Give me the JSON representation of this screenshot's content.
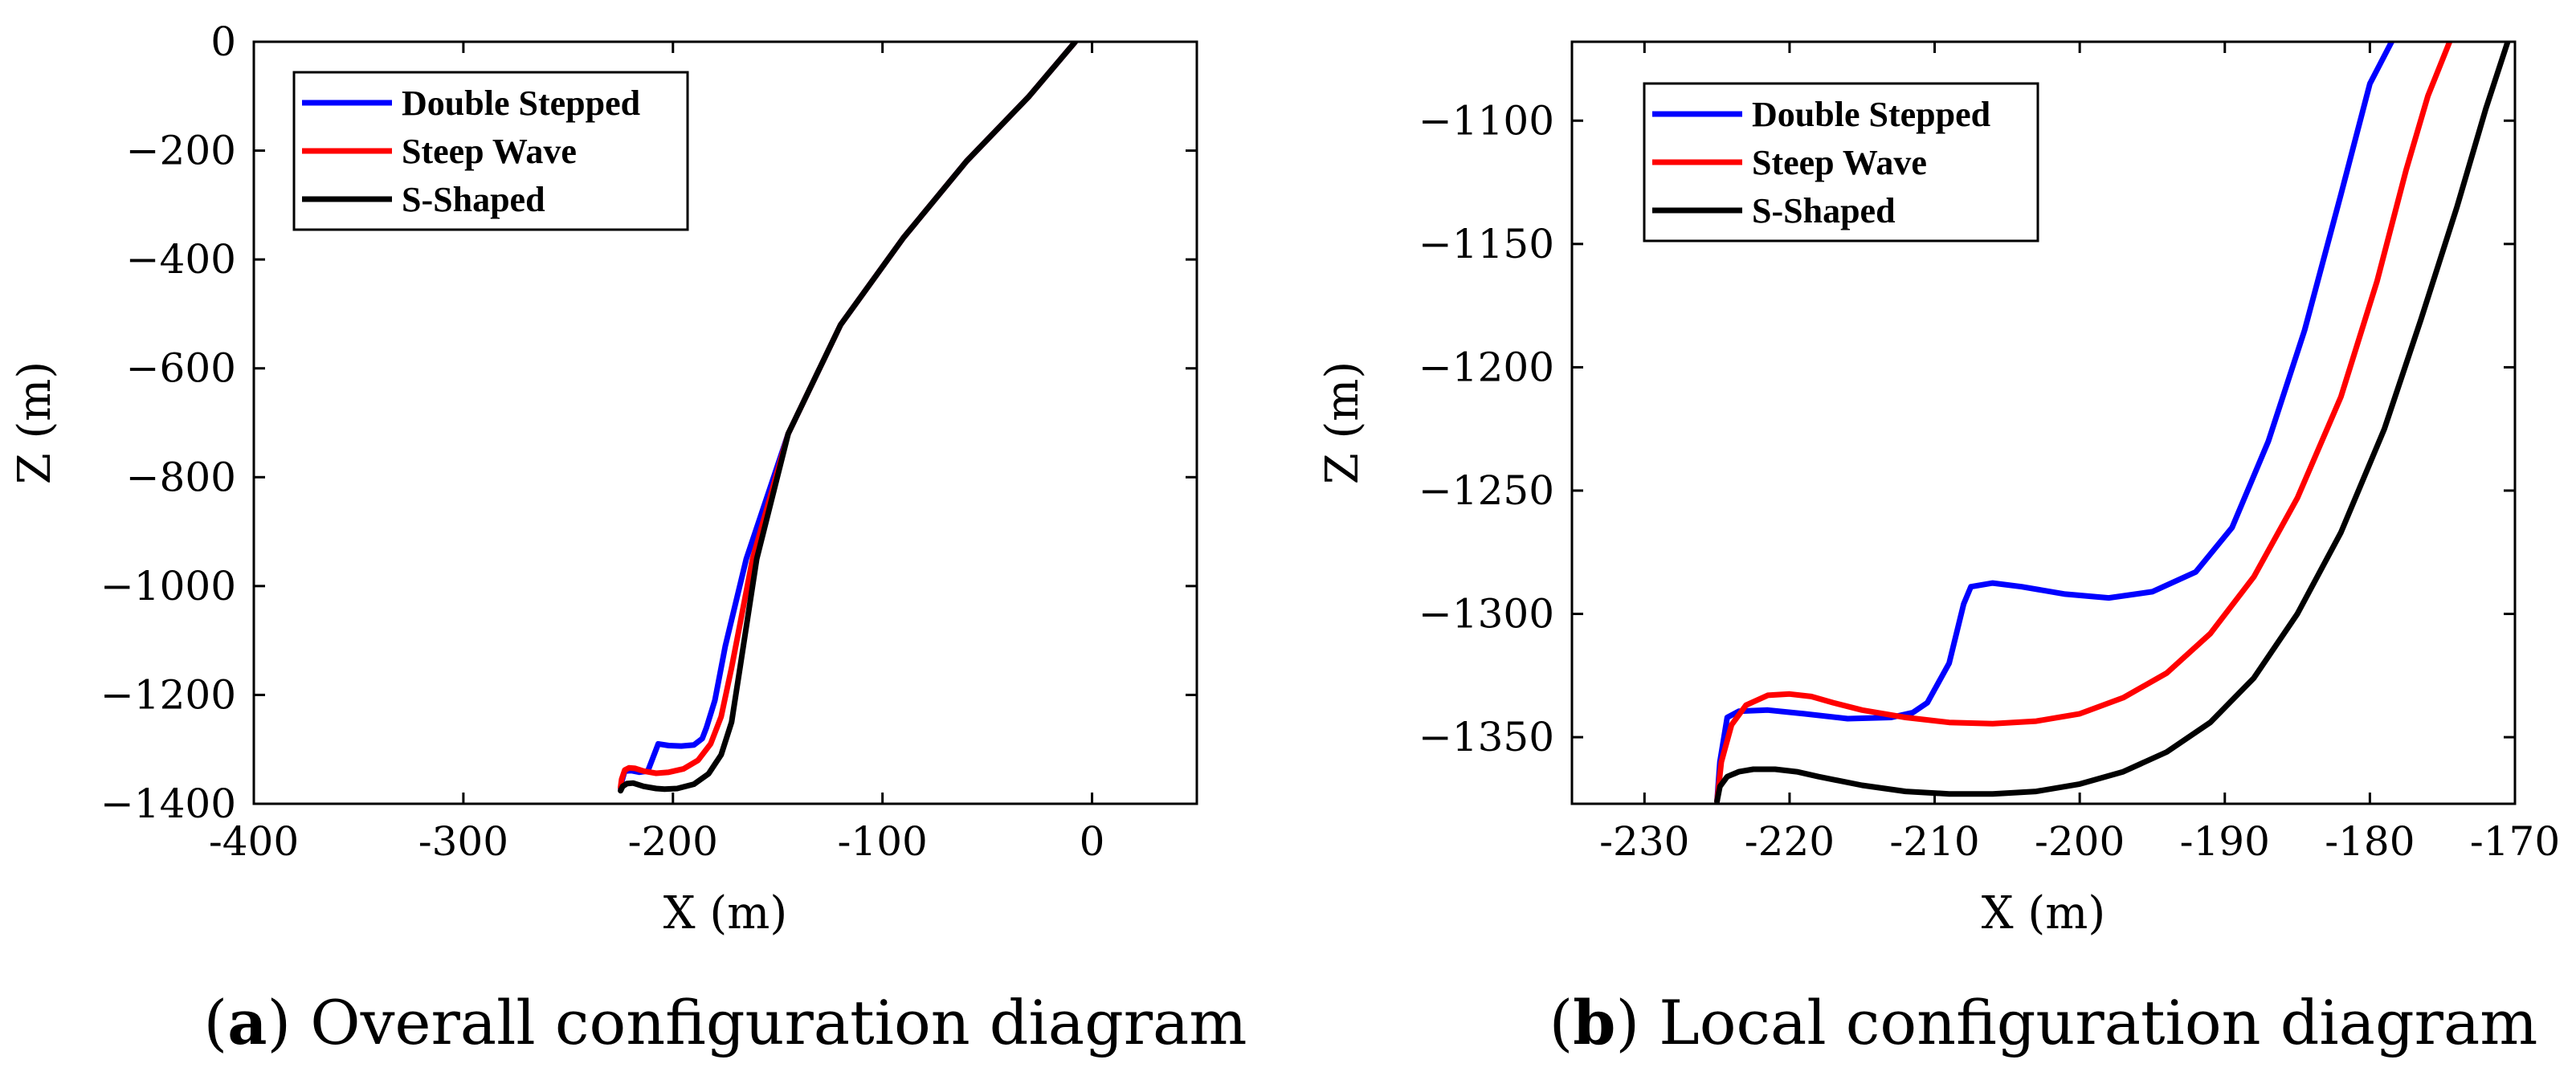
{
  "chart_data": [
    {
      "type": "line",
      "caption_letter": "a",
      "caption_text": "Overall configuration diagram",
      "xlabel": "X (m)",
      "ylabel": "Z (m)",
      "xlim": [
        -400,
        50
      ],
      "ylim": [
        -1400,
        0
      ],
      "xticks": [
        -400,
        -300,
        -200,
        -100,
        0
      ],
      "xtick_labels": [
        "-400",
        "-300",
        "-200",
        "-100",
        "0"
      ],
      "yticks": [
        0,
        -200,
        -400,
        -600,
        -800,
        -1000,
        -1200,
        -1400
      ],
      "ytick_labels": [
        "0",
        "−200",
        "−400",
        "−600",
        "−800",
        "−1000",
        "−1200",
        "−1400"
      ],
      "legend_position": "top-left",
      "series": [
        {
          "name": "Double Stepped",
          "color": "#0000ff",
          "x": [
            -8,
            -30,
            -60,
            -90,
            -120,
            -145,
            -165,
            -175,
            -180,
            -184,
            -186,
            -190,
            -196,
            -202,
            -207,
            -210,
            -212,
            -216,
            -220,
            -223,
            -224.5,
            -225
          ],
          "y": [
            0,
            -100,
            -220,
            -360,
            -520,
            -720,
            -950,
            -1110,
            -1210,
            -1260,
            -1280,
            -1292,
            -1294,
            -1293,
            -1290,
            -1320,
            -1340,
            -1342,
            -1339,
            -1340,
            -1360,
            -1372
          ]
        },
        {
          "name": "Steep Wave",
          "color": "#ff0000",
          "x": [
            -8,
            -30,
            -60,
            -90,
            -120,
            -145,
            -162,
            -172,
            -177,
            -182,
            -188,
            -195,
            -202,
            -208,
            -214,
            -218,
            -221,
            -223,
            -224.5,
            -225
          ],
          "y": [
            0,
            -100,
            -220,
            -360,
            -520,
            -720,
            -950,
            -1150,
            -1240,
            -1290,
            -1320,
            -1336,
            -1342,
            -1344,
            -1340,
            -1335,
            -1334,
            -1338,
            -1355,
            -1370
          ]
        },
        {
          "name": "S-Shaped",
          "color": "#000000",
          "x": [
            -8,
            -30,
            -60,
            -90,
            -120,
            -145,
            -160,
            -168,
            -172,
            -177,
            -183,
            -190,
            -198,
            -204,
            -208,
            -214,
            -219,
            -222,
            -224,
            -225
          ],
          "y": [
            0,
            -100,
            -220,
            -360,
            -520,
            -720,
            -950,
            -1150,
            -1250,
            -1310,
            -1345,
            -1364,
            -1372,
            -1373,
            -1372,
            -1368,
            -1362,
            -1363,
            -1368,
            -1376
          ]
        }
      ]
    },
    {
      "type": "line",
      "caption_letter": "b",
      "caption_text": "Local configuration diagram",
      "xlabel": "X (m)",
      "ylabel": "Z (m)",
      "xlim": [
        -235,
        -170
      ],
      "ylim": [
        -1377,
        -1068
      ],
      "xticks": [
        -230,
        -220,
        -210,
        -200,
        -190,
        -180,
        -170
      ],
      "xtick_labels": [
        "-230",
        "-220",
        "-210",
        "-200",
        "-190",
        "-180",
        "-170"
      ],
      "yticks": [
        -1100,
        -1150,
        -1200,
        -1250,
        -1300,
        -1350
      ],
      "ytick_labels": [
        "−1100",
        "−1150",
        "−1200",
        "−1250",
        "−1300",
        "−1350"
      ],
      "legend_position": "top-left",
      "series": [
        {
          "name": "Double Stepped",
          "color": "#0000ff",
          "x": [
            -225,
            -224.8,
            -224.3,
            -223.5,
            -221.5,
            -219,
            -216,
            -213,
            -211.5,
            -210.5,
            -209,
            -208,
            -207.5,
            -206,
            -204,
            -201,
            -198,
            -195,
            -192,
            -189.5,
            -187,
            -184.5,
            -182,
            -180,
            -178.5
          ],
          "y": [
            -1376,
            -1360,
            -1342,
            -1339.5,
            -1339,
            -1340.5,
            -1342.5,
            -1342,
            -1340,
            -1336,
            -1320,
            -1296,
            -1289,
            -1287.5,
            -1289,
            -1292,
            -1293.5,
            -1291,
            -1283,
            -1265,
            -1230,
            -1185,
            -1130,
            -1085,
            -1068
          ]
        },
        {
          "name": "Steep Wave",
          "color": "#ff0000",
          "x": [
            -225,
            -224.7,
            -224,
            -223,
            -221.5,
            -220,
            -218.5,
            -217,
            -215,
            -212,
            -209,
            -206,
            -203,
            -200,
            -197,
            -194,
            -191,
            -188,
            -185,
            -182,
            -179.5,
            -177.5,
            -176,
            -174.5
          ],
          "y": [
            -1376,
            -1360,
            -1345,
            -1337,
            -1333,
            -1332.5,
            -1333.5,
            -1336,
            -1339,
            -1342,
            -1344,
            -1344.5,
            -1343.5,
            -1340.5,
            -1334,
            -1324,
            -1308,
            -1285,
            -1253,
            -1212,
            -1165,
            -1120,
            -1090,
            -1068
          ]
        },
        {
          "name": "S-Shaped",
          "color": "#000000",
          "x": [
            -225,
            -224.8,
            -224.3,
            -223.5,
            -222.5,
            -221,
            -219.5,
            -218,
            -215,
            -212,
            -209,
            -206,
            -203,
            -200,
            -197,
            -194,
            -191,
            -188,
            -185,
            -182,
            -179,
            -176.5,
            -174,
            -172,
            -170.5
          ],
          "y": [
            -1376,
            -1370,
            -1366,
            -1364,
            -1363,
            -1363,
            -1364,
            -1366,
            -1369.5,
            -1372,
            -1373,
            -1373,
            -1372,
            -1369,
            -1364,
            -1356,
            -1344,
            -1326,
            -1300,
            -1267,
            -1225,
            -1181,
            -1135,
            -1095,
            -1068
          ]
        }
      ]
    }
  ]
}
